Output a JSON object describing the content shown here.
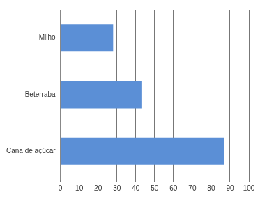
{
  "chart_data": {
    "type": "bar",
    "orientation": "horizontal",
    "categories": [
      "Milho",
      "Beterraba",
      "Cana de açúcar"
    ],
    "values": [
      28,
      43,
      87
    ],
    "color": "#5b8fd6",
    "xlim": [
      0,
      100
    ],
    "xticks": [
      0,
      10,
      20,
      30,
      40,
      50,
      60,
      70,
      80,
      90,
      100
    ],
    "grid": true
  }
}
